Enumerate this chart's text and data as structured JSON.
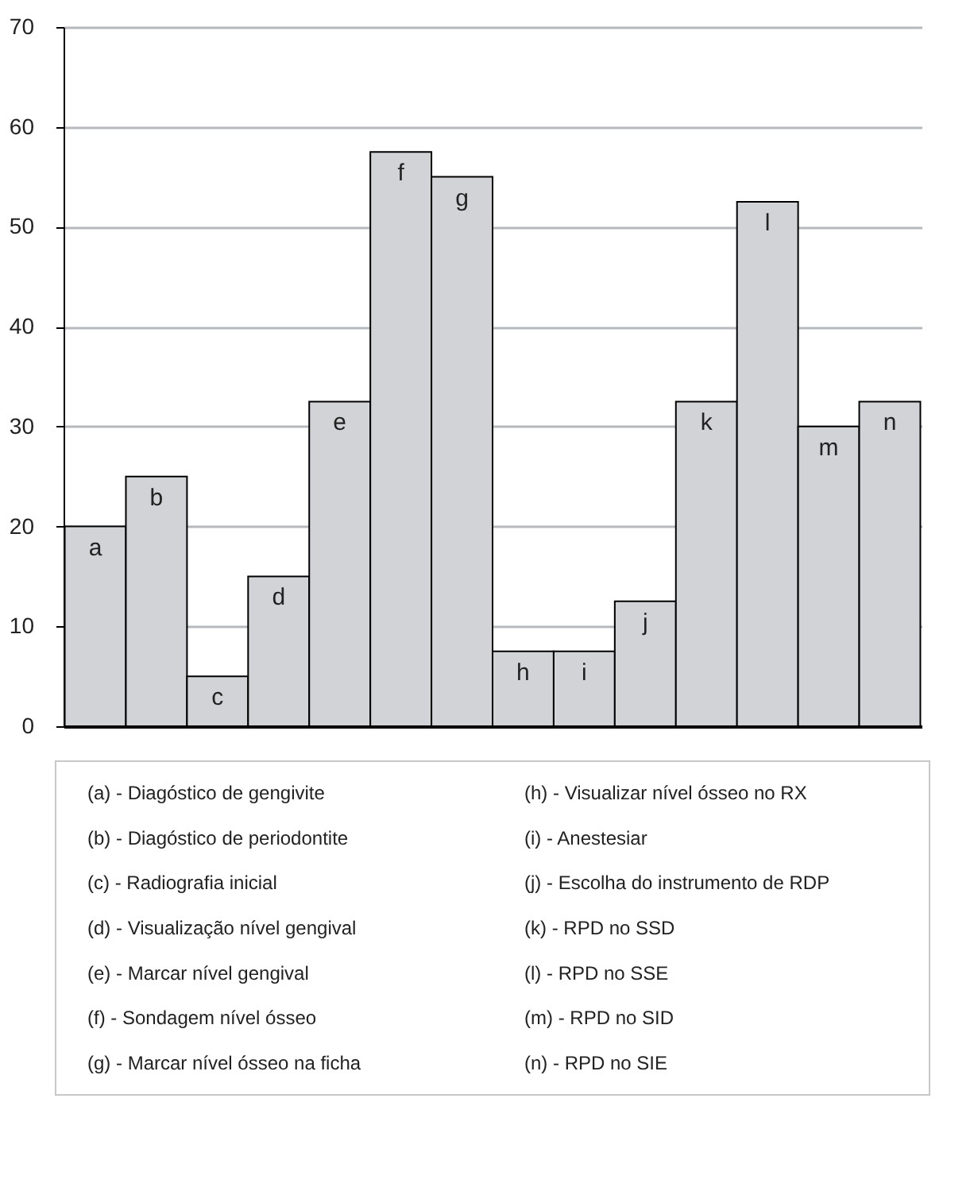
{
  "chart_data": {
    "type": "bar",
    "categories": [
      "a",
      "b",
      "c",
      "d",
      "e",
      "f",
      "g",
      "h",
      "i",
      "j",
      "k",
      "l",
      "m",
      "n"
    ],
    "values": [
      20,
      25,
      5,
      15,
      32.5,
      57.5,
      55,
      7.5,
      7.5,
      12.5,
      32.5,
      52.5,
      30,
      32.5
    ],
    "color": "#d1d3d6",
    "ylim": [
      0,
      70
    ],
    "yticks": [
      0,
      10,
      20,
      30,
      40,
      50,
      60,
      70
    ],
    "grid": "y",
    "tick_labels": "y",
    "annotations": [
      "(a) - Diagóstico de gengivite",
      "(b) - Diagóstico de periodontite",
      "(c) - Radiografia inicial",
      "(d) - Visualização  nível gengival",
      "(e) - Marcar nível gengival",
      " (f) - Sondagem nível ósseo",
      "(g) - Marcar nível ósseo na ficha",
      "(h) - Visualizar nível ósseo no RX",
      " (i) - Anestesiar",
      " (j) - Escolha do instrumento de RDP",
      "(k) - RPD no SSD",
      " (l) - RPD no SSE",
      "(m) - RPD no SID",
      "(n) - RPD no SIE"
    ]
  }
}
